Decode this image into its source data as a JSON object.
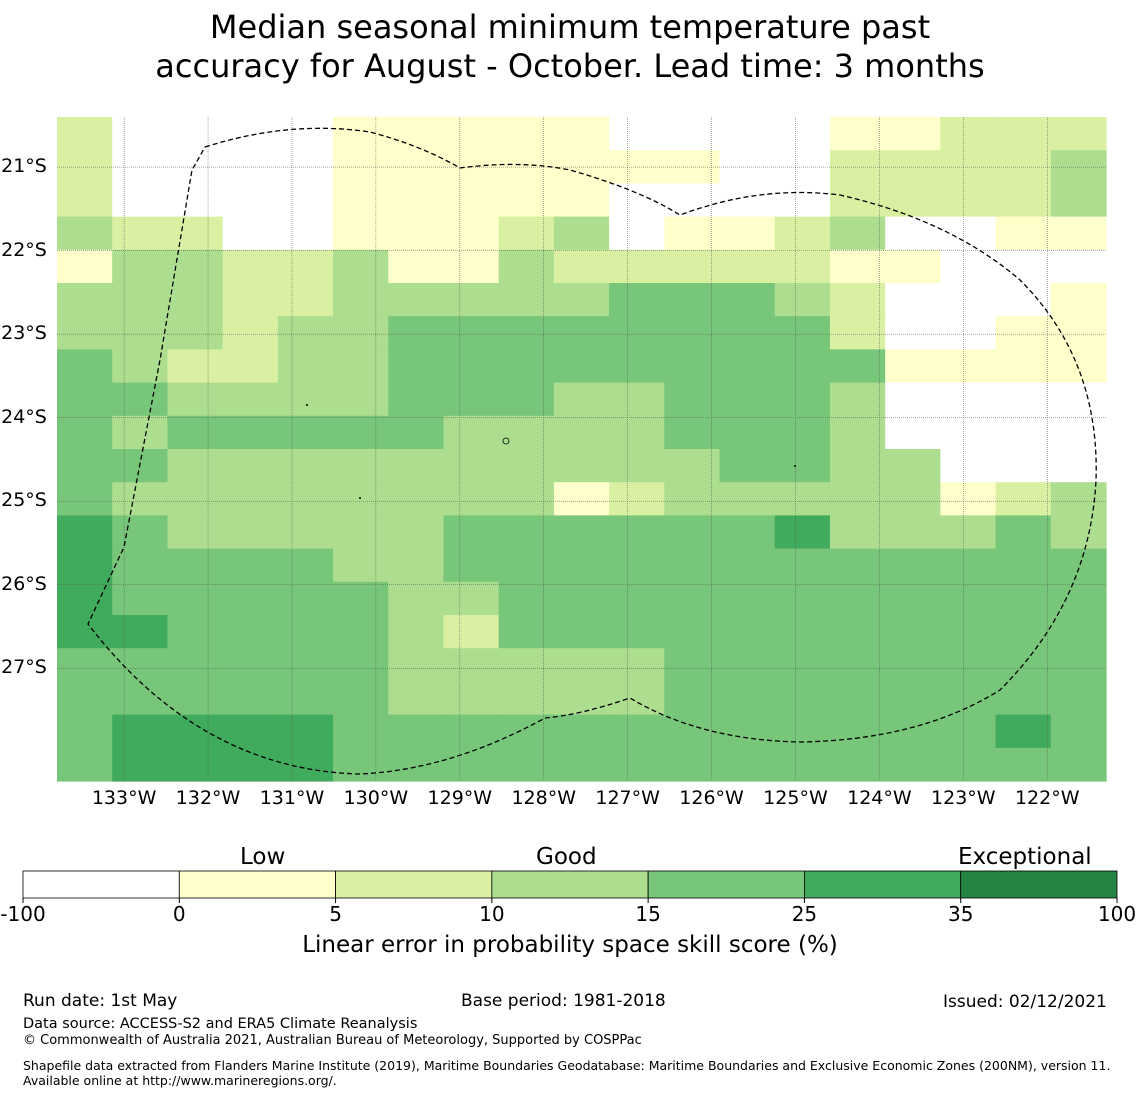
{
  "title": {
    "line1": "Median seasonal minimum temperature past",
    "line2": "accuracy for August - October. Lead time: 3 months"
  },
  "colors": {
    "lt0": "#ffffff",
    "b0_5": "#ffffcc",
    "b5_10": "#d9f0a3",
    "b10_15": "#addd8e",
    "b15_25": "#78c679",
    "b25_35": "#41ab5d",
    "b35_100": "#238443"
  },
  "chart_data": {
    "type": "heatmap",
    "lon_ticks": [
      "133°W",
      "132°W",
      "131°W",
      "130°W",
      "129°W",
      "128°W",
      "127°W",
      "126°W",
      "125°W",
      "124°W",
      "123°W",
      "122°W"
    ],
    "lat_ticks": [
      "21°S",
      "22°S",
      "23°S",
      "24°S",
      "25°S",
      "26°S",
      "27°S"
    ],
    "bin_codes": "0 = <0, 1 = 0-5, 2 = 5-10, 3 = 10-15, 4 = 15-25, 5 = 25-35, 6 = 35-100",
    "grid_rows": [
      "2000011111000011222",
      "2000011111110022223",
      "2000011111000022223",
      "3220011123011230011",
      "1332231132222211000",
      "3332233333444320001",
      "3332334444444420011",
      "4322334444444441111",
      "4433334443344430000",
      "4344444333344430000",
      "4433333333334433000",
      "4333333331233333123",
      "5433333444444533343",
      "5444433444444444444",
      "5444443344444444444",
      "5544443244444444444",
      "4444443333344444444",
      "4444443333344444444",
      "4555544444444444454",
      "4555544444444444444"
    ],
    "grid_rows_meta": "each string is one row of 1.0x0.5-degree cells from north (top) to south, columns from 133.8°W to 121.3°W",
    "colorbar": {
      "boundaries": [
        "-100",
        "0",
        "5",
        "10",
        "15",
        "25",
        "35",
        "100"
      ],
      "categories": [
        "Low",
        "Good",
        "Exceptional"
      ],
      "label": "Linear error in probability space skill score (%)"
    }
  },
  "footer": {
    "run_date": "Run date: 1st May",
    "base_period": "Base period: 1981-2018",
    "issued": "Issued: 02/12/2021",
    "data_source": "Data source: ACCESS-S2 and ERA5 Climate Reanalysis",
    "copyright": "© Commonwealth of Australia 2021, Australian Bureau of Meteorology, Supported by COSPPac",
    "shapefile": "Shapefile data extracted from Flanders Marine Institute (2019), Maritime Boundaries Geodatabase: Maritime Boundaries and Exclusive Economic Zones (200NM), version 11. Available online at http://www.marineregions.org/."
  }
}
